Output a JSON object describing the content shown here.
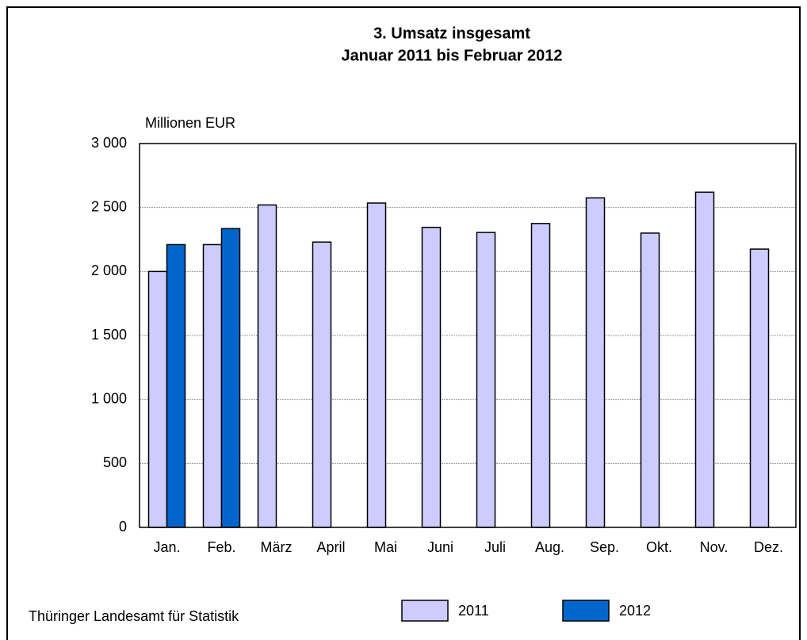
{
  "chart_data": {
    "type": "bar",
    "title": "3. Umsatz insgesamt",
    "subtitle": "Januar 2011 bis Februar 2012",
    "y_label": "Millionen EUR",
    "source": "Thüringer Landesamt für Statistik",
    "categories": [
      "Jan.",
      "Feb.",
      "März",
      "April",
      "Mai",
      "Juni",
      "Juli",
      "Aug.",
      "Sep.",
      "Okt.",
      "Nov.",
      "Dez."
    ],
    "series": [
      {
        "name": "2011",
        "color": "#ccccff",
        "values": [
          2000,
          2210,
          2520,
          2230,
          2535,
          2345,
          2305,
          2375,
          2575,
          2300,
          2620,
          2175
        ]
      },
      {
        "name": "2012",
        "color": "#0066cc",
        "values": [
          2210,
          2335,
          null,
          null,
          null,
          null,
          null,
          null,
          null,
          null,
          null,
          null
        ]
      }
    ],
    "ylim": [
      0,
      3000
    ],
    "yticks": [
      0,
      500,
      {
        "value": 1000,
        "label": "1 000"
      },
      {
        "value": 1500,
        "label": "1 500"
      },
      {
        "value": 2000,
        "label": "2 000"
      },
      {
        "value": 2500,
        "label": "2 500"
      },
      {
        "value": 3000,
        "label": "3 000"
      }
    ],
    "grid": true,
    "legend": "bottom"
  }
}
